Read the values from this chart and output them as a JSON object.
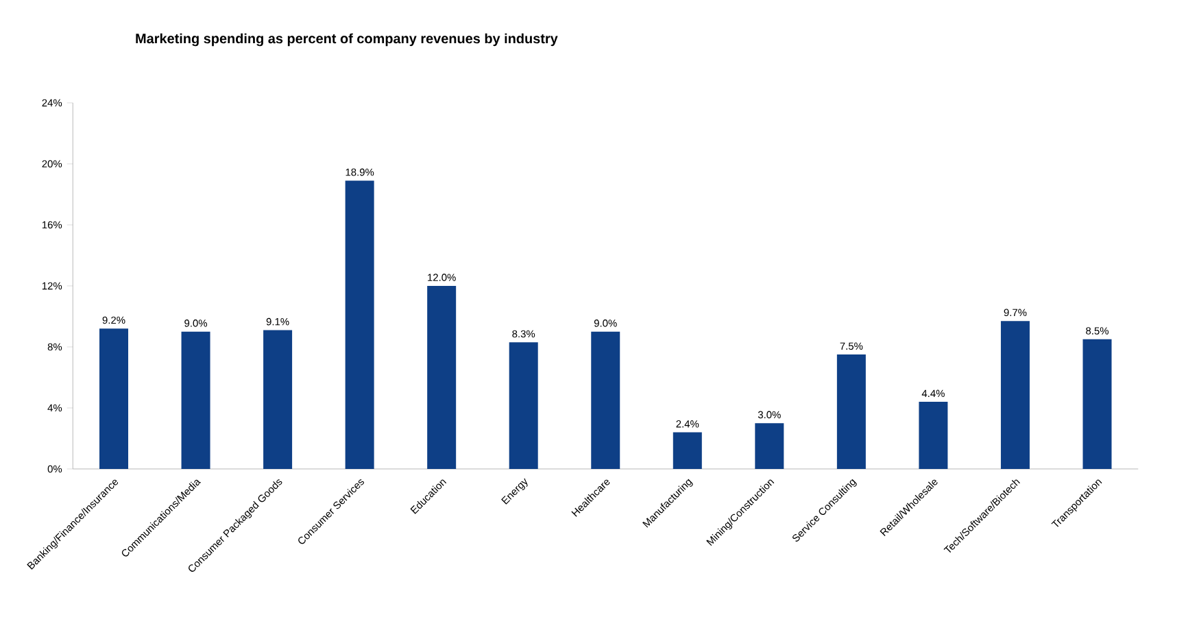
{
  "chart_data": {
    "type": "bar",
    "title": "Marketing spending as percent of company revenues by industry",
    "categories": [
      "Banking/Finance/Insurance",
      "Communications/Media",
      "Consumer Packaged Goods",
      "Consumer Services",
      "Education",
      "Energy",
      "Healthcare",
      "Manufacturing",
      "Mining/Construction",
      "Service Consulting",
      "Retail/Wholesale",
      "Tech/Software/Biotech",
      "Transportation"
    ],
    "values": [
      9.2,
      9.0,
      9.1,
      18.9,
      12.0,
      8.3,
      9.0,
      2.4,
      3.0,
      7.5,
      4.4,
      9.7,
      8.5
    ],
    "value_labels": [
      "9.2%",
      "9.0%",
      "9.1%",
      "18.9%",
      "12.0%",
      "8.3%",
      "9.0%",
      "2.4%",
      "3.0%",
      "7.5%",
      "4.4%",
      "9.7%",
      "8.5%"
    ],
    "color": "#0e3f86",
    "ylim": [
      0,
      24
    ],
    "yticks": [
      {
        "value": 0,
        "label": "0%"
      },
      {
        "value": 4,
        "label": "4%"
      },
      {
        "value": 8,
        "label": "8%"
      },
      {
        "value": 12,
        "label": "12%"
      },
      {
        "value": 16,
        "label": "16%"
      },
      {
        "value": 20,
        "label": "20%"
      },
      {
        "value": 24,
        "label": "24%"
      }
    ]
  }
}
